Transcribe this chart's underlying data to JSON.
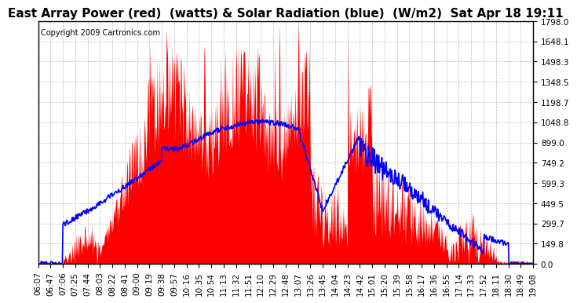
{
  "title": "East Array Power (red)  (watts) & Solar Radiation (blue)  (W/m2)  Sat Apr 18 19:11",
  "copyright": "Copyright 2009 Cartronics.com",
  "yticks": [
    0.0,
    149.8,
    299.7,
    449.5,
    599.3,
    749.2,
    899.0,
    1048.8,
    1198.7,
    1348.5,
    1498.3,
    1648.1,
    1798.0
  ],
  "ylim": [
    0.0,
    1798.0
  ],
  "xtick_labels": [
    "06:07",
    "06:47",
    "07:06",
    "07:25",
    "07:44",
    "08:03",
    "08:22",
    "08:41",
    "09:00",
    "09:19",
    "09:38",
    "09:57",
    "10:16",
    "10:35",
    "10:54",
    "11:13",
    "11:32",
    "11:51",
    "12:10",
    "12:29",
    "12:48",
    "13:07",
    "13:26",
    "13:45",
    "14:04",
    "14:23",
    "14:42",
    "15:01",
    "15:20",
    "15:39",
    "15:58",
    "16:17",
    "16:36",
    "16:55",
    "17:14",
    "17:33",
    "17:52",
    "18:11",
    "18:30",
    "18:49",
    "19:08"
  ],
  "bg_color": "#ffffff",
  "plot_bg_color": "#ffffff",
  "grid_color": "#aaaaaa",
  "red_color": "#ff0000",
  "blue_color": "#0000ff",
  "title_fontsize": 11,
  "copyright_fontsize": 7,
  "tick_fontsize": 7.5
}
